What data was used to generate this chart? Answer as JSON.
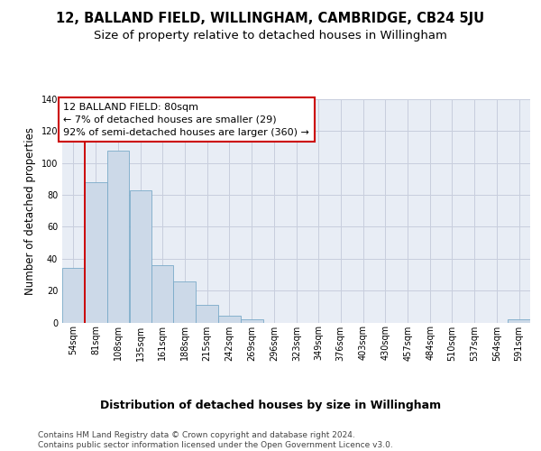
{
  "title": "12, BALLAND FIELD, WILLINGHAM, CAMBRIDGE, CB24 5JU",
  "subtitle": "Size of property relative to detached houses in Willingham",
  "xlabel": "Distribution of detached houses by size in Willingham",
  "ylabel": "Number of detached properties",
  "bin_edges": [
    54,
    81,
    108,
    135,
    161,
    188,
    215,
    242,
    269,
    296,
    323,
    349,
    376,
    403,
    430,
    457,
    484,
    510,
    537,
    564,
    591
  ],
  "bar_heights": [
    34,
    88,
    108,
    83,
    36,
    26,
    11,
    4,
    2,
    0,
    0,
    0,
    0,
    0,
    0,
    0,
    0,
    0,
    0,
    0,
    2
  ],
  "tick_labels": [
    "54sqm",
    "81sqm",
    "108sqm",
    "135sqm",
    "161sqm",
    "188sqm",
    "215sqm",
    "242sqm",
    "269sqm",
    "296sqm",
    "323sqm",
    "349sqm",
    "376sqm",
    "403sqm",
    "430sqm",
    "457sqm",
    "484sqm",
    "510sqm",
    "537sqm",
    "564sqm",
    "591sqm"
  ],
  "bar_color": "#ccd9e8",
  "bar_edge_color": "#7aaac8",
  "grid_color": "#c8cedd",
  "bg_color": "#e8edf5",
  "vline_x": 81,
  "vline_color": "#cc0000",
  "annotation_text": "12 BALLAND FIELD: 80sqm\n← 7% of detached houses are smaller (29)\n92% of semi-detached houses are larger (360) →",
  "annotation_box_facecolor": "#ffffff",
  "annotation_box_edgecolor": "#cc0000",
  "ylim": [
    0,
    140
  ],
  "yticks": [
    0,
    20,
    40,
    60,
    80,
    100,
    120,
    140
  ],
  "footer_text": "Contains HM Land Registry data © Crown copyright and database right 2024.\nContains public sector information licensed under the Open Government Licence v3.0.",
  "title_fontsize": 10.5,
  "subtitle_fontsize": 9.5,
  "xlabel_fontsize": 9,
  "ylabel_fontsize": 8.5,
  "tick_fontsize": 7,
  "annotation_fontsize": 8,
  "footer_fontsize": 6.5
}
